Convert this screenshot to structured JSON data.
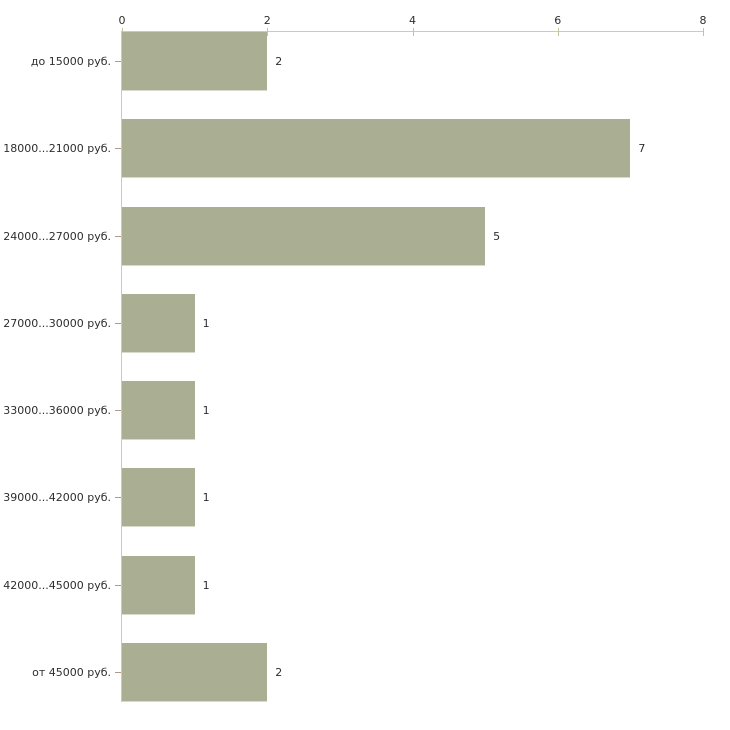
{
  "chart_data": {
    "type": "bar",
    "orientation": "horizontal",
    "title": "",
    "xlabel": "",
    "ylabel": "",
    "categories": [
      "до 15000 руб.",
      "18000...21000 руб.",
      "24000...27000 руб.",
      "27000...30000 руб.",
      "33000...36000 руб.",
      "39000...42000 руб.",
      "42000...45000 руб.",
      "от 45000 руб."
    ],
    "values": [
      2,
      7,
      5,
      1,
      1,
      1,
      1,
      2
    ],
    "value_labels": [
      "2",
      "7",
      "5",
      "1",
      "1",
      "1",
      "1",
      "2"
    ],
    "xlim": [
      0,
      8
    ],
    "x_ticks": [
      0,
      2,
      4,
      6,
      8
    ],
    "x_tick_labels": [
      "0",
      "2",
      "4",
      "6",
      "8"
    ],
    "axis_position": "top",
    "grid": "off",
    "legend": "none",
    "bar_color": "#aaaf94",
    "axis_line_color": "#c9c9c9",
    "x_tick_color": "#c2c49a",
    "y_tick_color": "#ab9a8a",
    "text_color": "#2e2e2e",
    "background_color": "#ffffff"
  }
}
